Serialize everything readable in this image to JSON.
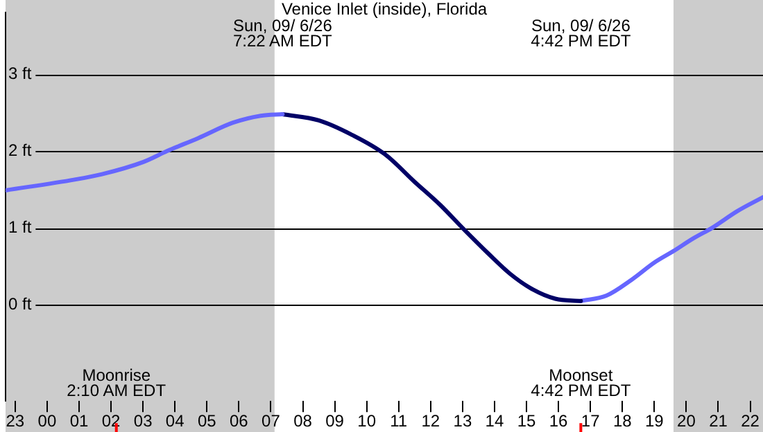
{
  "chart_data": {
    "type": "line",
    "title": "Venice Inlet (inside), Florida",
    "series": [
      {
        "color": "#6666ff",
        "x": [
          "--09-05T22:42",
          "--09-06T00:52",
          "--09-06T01:43",
          "--09-06T03:01",
          "--09-06T03:45",
          "--09-06T04:44",
          "--09-06T05:49",
          "--09-06T06:41",
          "--09-06T07:22"
        ],
        "values": [
          1.49,
          1.63,
          1.7,
          1.86,
          2.0,
          2.17,
          2.37,
          2.46,
          2.48
        ]
      },
      {
        "color": "#000066",
        "x": [
          "--09-06T07:22",
          "--09-06T08:30",
          "--09-06T09:30",
          "--09-06T10:34",
          "--09-06T11:30",
          "--09-06T12:18",
          "--09-06T13:00",
          "--09-06T13:48",
          "--09-06T14:30",
          "--09-06T15:12",
          "--09-06T15:54",
          "--09-06T16:42"
        ],
        "values": [
          2.48,
          2.4,
          2.22,
          1.96,
          1.6,
          1.3,
          1.0,
          0.67,
          0.4,
          0.2,
          0.08,
          0.05
        ]
      },
      {
        "color": "#6666ff",
        "x": [
          "--09-06T16:42",
          "--09-06T17:30",
          "--09-06T18:18",
          "--09-06T19:00",
          "--09-06T19:36",
          "--09-06T20:12",
          "--09-06T20:48",
          "--09-06T21:36",
          "--09-06T22:24"
        ],
        "values": [
          0.05,
          0.12,
          0.33,
          0.55,
          0.7,
          0.86,
          1.0,
          1.22,
          1.4
        ]
      }
    ],
    "xlim": [
      "--09-05T22:42",
      "--09-06T22:24"
    ],
    "xticks": [
      {
        "value": "--09-05T23:00",
        "label": "23"
      },
      {
        "value": "--09-06T00:00",
        "label": "00"
      },
      {
        "value": "--09-06T01:00",
        "label": "01"
      },
      {
        "value": "--09-06T02:00",
        "label": "02"
      },
      {
        "value": "--09-06T03:00",
        "label": "03"
      },
      {
        "value": "--09-06T04:00",
        "label": "04"
      },
      {
        "value": "--09-06T05:00",
        "label": "05"
      },
      {
        "value": "--09-06T06:00",
        "label": "06"
      },
      {
        "value": "--09-06T07:00",
        "label": "07"
      },
      {
        "value": "--09-06T08:00",
        "label": "08"
      },
      {
        "value": "--09-06T09:00",
        "label": "09"
      },
      {
        "value": "--09-06T10:00",
        "label": "10"
      },
      {
        "value": "--09-06T11:00",
        "label": "11"
      },
      {
        "value": "--09-06T12:00",
        "label": "12"
      },
      {
        "value": "--09-06T13:00",
        "label": "13"
      },
      {
        "value": "--09-06T14:00",
        "label": "14"
      },
      {
        "value": "--09-06T15:00",
        "label": "15"
      },
      {
        "value": "--09-06T16:00",
        "label": "16"
      },
      {
        "value": "--09-06T17:00",
        "label": "17"
      },
      {
        "value": "--09-06T18:00",
        "label": "18"
      },
      {
        "value": "--09-06T19:00",
        "label": "19"
      },
      {
        "value": "--09-06T20:00",
        "label": "20"
      },
      {
        "value": "--09-06T21:00",
        "label": "21"
      },
      {
        "value": "--09-06T22:00",
        "label": "22"
      }
    ],
    "ylim": [
      -1.25,
      3.8
    ],
    "yticks": [
      {
        "value": 0,
        "label": "0 ft"
      },
      {
        "value": 1,
        "label": "1 ft"
      },
      {
        "value": 2,
        "label": "2 ft"
      },
      {
        "value": 3,
        "label": "3 ft"
      }
    ],
    "grid": "y",
    "legend": false,
    "marker": "none",
    "line_style": "solid",
    "bands": [
      {
        "axis": "x",
        "from": "--09-05T22:42",
        "to": "--09-06T07:07",
        "color": "#cccccc"
      },
      {
        "axis": "x",
        "from": "--09-06T19:36",
        "to": "--09-06T22:24",
        "color": "#cccccc"
      }
    ],
    "ref_lines": [
      {
        "axis": "x",
        "value": "--09-06T02:10",
        "label": "Moonrise\n2:10 AM EDT",
        "color": "#ff0000"
      },
      {
        "axis": "x",
        "value": "--09-06T16:42",
        "label": "Moonset\n4:42 PM EDT",
        "color": "#ff0000"
      }
    ],
    "annotations": [
      "Sun, 09/ 6/26\n7:22 AM EDT",
      "Sun, 09/ 6/26\n4:42 PM EDT"
    ]
  }
}
